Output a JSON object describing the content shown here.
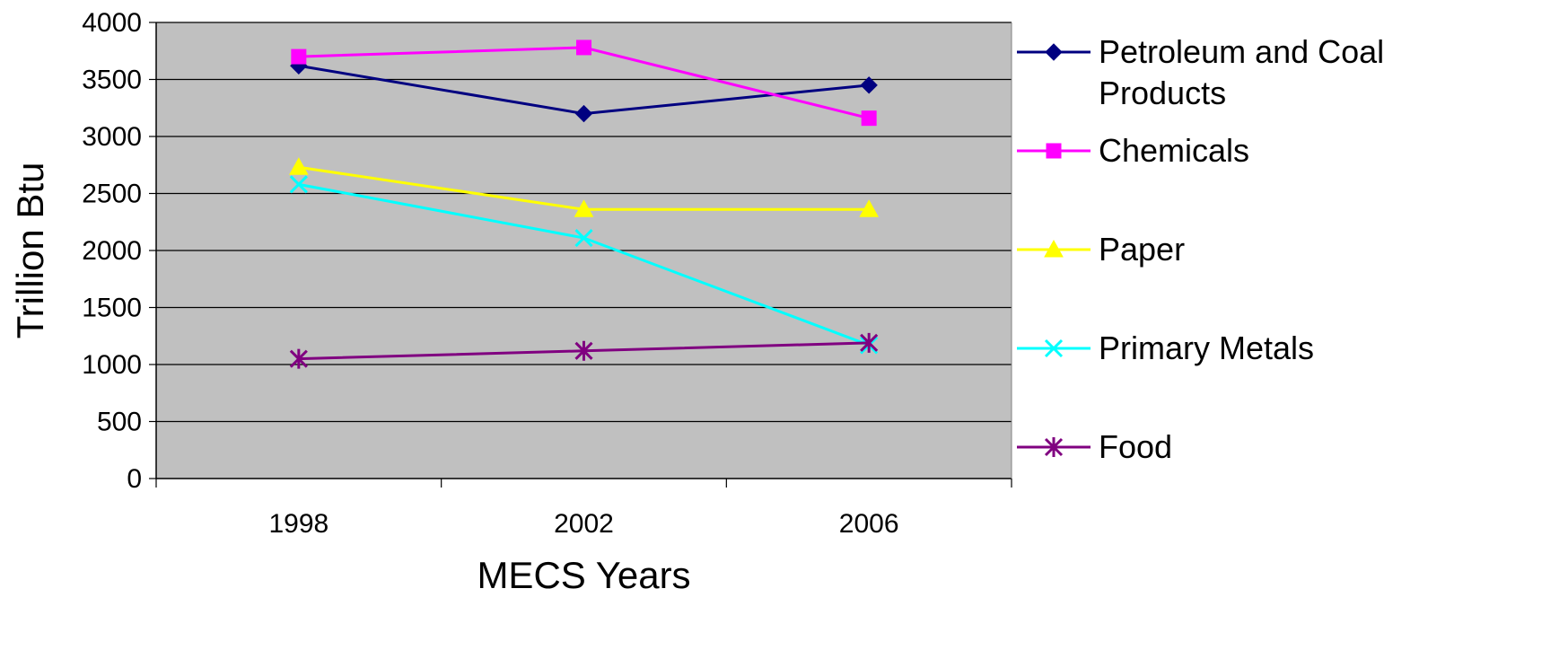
{
  "chart_data": {
    "type": "line",
    "title": "",
    "xlabel": "MECS Years",
    "ylabel": "Trillion Btu",
    "categories": [
      "1998",
      "2002",
      "2006"
    ],
    "ylim": [
      0,
      4000
    ],
    "yticks": [
      "0",
      "500",
      "1000",
      "1500",
      "2000",
      "2500",
      "3000",
      "3500",
      "4000"
    ],
    "grid": true,
    "legend_position": "right",
    "plot_background": "#C0C0C0",
    "series": [
      {
        "name": "Petroleum and Coal Products",
        "legend_lines": [
          "Petroleum and Coal",
          "Products"
        ],
        "values": [
          3620,
          3200,
          3450
        ],
        "color": "#000080",
        "marker": "diamond"
      },
      {
        "name": "Chemicals",
        "legend_lines": [
          "Chemicals"
        ],
        "values": [
          3700,
          3780,
          3160
        ],
        "color": "#FF00FF",
        "marker": "square"
      },
      {
        "name": "Paper",
        "legend_lines": [
          "Paper"
        ],
        "values": [
          2730,
          2360,
          2360
        ],
        "color": "#FFFF00",
        "marker": "triangle"
      },
      {
        "name": "Primary Metals",
        "legend_lines": [
          "Primary Metals"
        ],
        "values": [
          2580,
          2110,
          1170
        ],
        "color": "#00FFFF",
        "marker": "x"
      },
      {
        "name": "Food",
        "legend_lines": [
          "Food"
        ],
        "values": [
          1050,
          1120,
          1190
        ],
        "color": "#800080",
        "marker": "asterisk"
      }
    ]
  }
}
